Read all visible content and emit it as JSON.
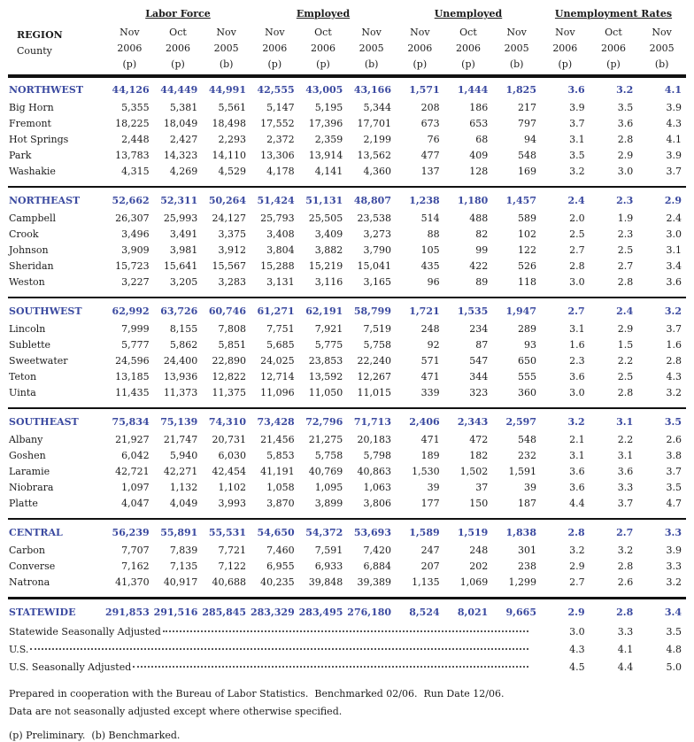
{
  "colors": {
    "region_accent": "#3b4aa0",
    "rule_color": "#111111"
  },
  "header": {
    "region_label": "REGION",
    "county_label": "County",
    "groups": [
      {
        "label": "Labor Force"
      },
      {
        "label": "Employed"
      },
      {
        "label": "Unemployed"
      },
      {
        "label": "Unemployment Rates"
      }
    ],
    "months": [
      "Nov",
      "Oct",
      "Nov"
    ],
    "years": [
      "2006",
      "2006",
      "2005"
    ],
    "notes": [
      "(p)",
      "(p)",
      "(b)"
    ]
  },
  "sections": [
    {
      "region": {
        "name": "NORTHWEST",
        "values": [
          "44,126",
          "44,449",
          "44,991",
          "42,555",
          "43,005",
          "43,166",
          "1,571",
          "1,444",
          "1,825",
          "3.6",
          "3.2",
          "4.1"
        ]
      },
      "counties": [
        {
          "name": "Big Horn",
          "values": [
            "5,355",
            "5,381",
            "5,561",
            "5,147",
            "5,195",
            "5,344",
            "208",
            "186",
            "217",
            "3.9",
            "3.5",
            "3.9"
          ]
        },
        {
          "name": "Fremont",
          "values": [
            "18,225",
            "18,049",
            "18,498",
            "17,552",
            "17,396",
            "17,701",
            "673",
            "653",
            "797",
            "3.7",
            "3.6",
            "4.3"
          ]
        },
        {
          "name": "Hot Springs",
          "values": [
            "2,448",
            "2,427",
            "2,293",
            "2,372",
            "2,359",
            "2,199",
            "76",
            "68",
            "94",
            "3.1",
            "2.8",
            "4.1"
          ]
        },
        {
          "name": "Park",
          "values": [
            "13,783",
            "14,323",
            "14,110",
            "13,306",
            "13,914",
            "13,562",
            "477",
            "409",
            "548",
            "3.5",
            "2.9",
            "3.9"
          ]
        },
        {
          "name": "Washakie",
          "values": [
            "4,315",
            "4,269",
            "4,529",
            "4,178",
            "4,141",
            "4,360",
            "137",
            "128",
            "169",
            "3.2",
            "3.0",
            "3.7"
          ]
        }
      ]
    },
    {
      "region": {
        "name": "NORTHEAST",
        "values": [
          "52,662",
          "52,311",
          "50,264",
          "51,424",
          "51,131",
          "48,807",
          "1,238",
          "1,180",
          "1,457",
          "2.4",
          "2.3",
          "2.9"
        ]
      },
      "counties": [
        {
          "name": "Campbell",
          "values": [
            "26,307",
            "25,993",
            "24,127",
            "25,793",
            "25,505",
            "23,538",
            "514",
            "488",
            "589",
            "2.0",
            "1.9",
            "2.4"
          ]
        },
        {
          "name": "Crook",
          "values": [
            "3,496",
            "3,491",
            "3,375",
            "3,408",
            "3,409",
            "3,273",
            "88",
            "82",
            "102",
            "2.5",
            "2.3",
            "3.0"
          ]
        },
        {
          "name": "Johnson",
          "values": [
            "3,909",
            "3,981",
            "3,912",
            "3,804",
            "3,882",
            "3,790",
            "105",
            "99",
            "122",
            "2.7",
            "2.5",
            "3.1"
          ]
        },
        {
          "name": "Sheridan",
          "values": [
            "15,723",
            "15,641",
            "15,567",
            "15,288",
            "15,219",
            "15,041",
            "435",
            "422",
            "526",
            "2.8",
            "2.7",
            "3.4"
          ]
        },
        {
          "name": "Weston",
          "values": [
            "3,227",
            "3,205",
            "3,283",
            "3,131",
            "3,116",
            "3,165",
            "96",
            "89",
            "118",
            "3.0",
            "2.8",
            "3.6"
          ]
        }
      ]
    },
    {
      "region": {
        "name": "SOUTHWEST",
        "values": [
          "62,992",
          "63,726",
          "60,746",
          "61,271",
          "62,191",
          "58,799",
          "1,721",
          "1,535",
          "1,947",
          "2.7",
          "2.4",
          "3.2"
        ]
      },
      "counties": [
        {
          "name": "Lincoln",
          "values": [
            "7,999",
            "8,155",
            "7,808",
            "7,751",
            "7,921",
            "7,519",
            "248",
            "234",
            "289",
            "3.1",
            "2.9",
            "3.7"
          ]
        },
        {
          "name": "Sublette",
          "values": [
            "5,777",
            "5,862",
            "5,851",
            "5,685",
            "5,775",
            "5,758",
            "92",
            "87",
            "93",
            "1.6",
            "1.5",
            "1.6"
          ]
        },
        {
          "name": "Sweetwater",
          "values": [
            "24,596",
            "24,400",
            "22,890",
            "24,025",
            "23,853",
            "22,240",
            "571",
            "547",
            "650",
            "2.3",
            "2.2",
            "2.8"
          ]
        },
        {
          "name": "Teton",
          "values": [
            "13,185",
            "13,936",
            "12,822",
            "12,714",
            "13,592",
            "12,267",
            "471",
            "344",
            "555",
            "3.6",
            "2.5",
            "4.3"
          ]
        },
        {
          "name": "Uinta",
          "values": [
            "11,435",
            "11,373",
            "11,375",
            "11,096",
            "11,050",
            "11,015",
            "339",
            "323",
            "360",
            "3.0",
            "2.8",
            "3.2"
          ]
        }
      ]
    },
    {
      "region": {
        "name": "SOUTHEAST",
        "values": [
          "75,834",
          "75,139",
          "74,310",
          "73,428",
          "72,796",
          "71,713",
          "2,406",
          "2,343",
          "2,597",
          "3.2",
          "3.1",
          "3.5"
        ]
      },
      "counties": [
        {
          "name": "Albany",
          "values": [
            "21,927",
            "21,747",
            "20,731",
            "21,456",
            "21,275",
            "20,183",
            "471",
            "472",
            "548",
            "2.1",
            "2.2",
            "2.6"
          ]
        },
        {
          "name": "Goshen",
          "values": [
            "6,042",
            "5,940",
            "6,030",
            "5,853",
            "5,758",
            "5,798",
            "189",
            "182",
            "232",
            "3.1",
            "3.1",
            "3.8"
          ]
        },
        {
          "name": "Laramie",
          "values": [
            "42,721",
            "42,271",
            "42,454",
            "41,191",
            "40,769",
            "40,863",
            "1,530",
            "1,502",
            "1,591",
            "3.6",
            "3.6",
            "3.7"
          ]
        },
        {
          "name": "Niobrara",
          "values": [
            "1,097",
            "1,132",
            "1,102",
            "1,058",
            "1,095",
            "1,063",
            "39",
            "37",
            "39",
            "3.6",
            "3.3",
            "3.5"
          ]
        },
        {
          "name": "Platte",
          "values": [
            "4,047",
            "4,049",
            "3,993",
            "3,870",
            "3,899",
            "3,806",
            "177",
            "150",
            "187",
            "4.4",
            "3.7",
            "4.7"
          ]
        }
      ]
    },
    {
      "region": {
        "name": "CENTRAL",
        "values": [
          "56,239",
          "55,891",
          "55,531",
          "54,650",
          "54,372",
          "53,693",
          "1,589",
          "1,519",
          "1,838",
          "2.8",
          "2.7",
          "3.3"
        ]
      },
      "counties": [
        {
          "name": "Carbon",
          "values": [
            "7,707",
            "7,839",
            "7,721",
            "7,460",
            "7,591",
            "7,420",
            "247",
            "248",
            "301",
            "3.2",
            "3.2",
            "3.9"
          ]
        },
        {
          "name": "Converse",
          "values": [
            "7,162",
            "7,135",
            "7,122",
            "6,955",
            "6,933",
            "6,884",
            "207",
            "202",
            "238",
            "2.9",
            "2.8",
            "3.3"
          ]
        },
        {
          "name": "Natrona",
          "values": [
            "41,370",
            "40,917",
            "40,688",
            "40,235",
            "39,848",
            "39,389",
            "1,135",
            "1,069",
            "1,299",
            "2.7",
            "2.6",
            "3.2"
          ]
        }
      ]
    }
  ],
  "statewide": {
    "name": "STATEWIDE",
    "values": [
      "291,853",
      "291,516",
      "285,845",
      "283,329",
      "283,495",
      "276,180",
      "8,524",
      "8,021",
      "9,665",
      "2.9",
      "2.8",
      "3.4"
    ]
  },
  "adjusted_rows": [
    {
      "label": "Statewide Seasonally Adjusted ",
      "rates": [
        "3.0",
        "3.3",
        "3.5"
      ]
    },
    {
      "label": "U.S.",
      "rates": [
        "4.3",
        "4.1",
        "4.8"
      ]
    },
    {
      "label": "U.S. Seasonally Adjusted",
      "rates": [
        "4.5",
        "4.4",
        "5.0"
      ]
    }
  ],
  "footer": {
    "line1": "Prepared in cooperation with the Bureau of Labor Statistics.  Benchmarked 02/06.  Run Date 12/06.",
    "line2": "Data are not seasonally adjusted except where otherwise specified.",
    "legend": "(p) Preliminary.  (b) Benchmarked."
  }
}
